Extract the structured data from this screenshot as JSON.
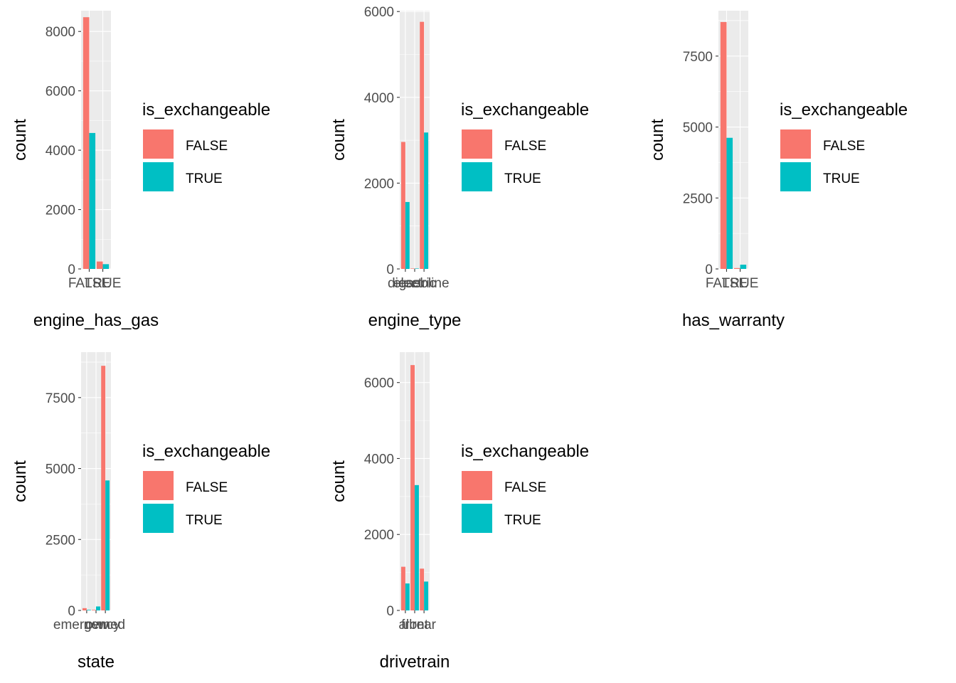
{
  "colors": {
    "FALSE": "#F8766D",
    "TRUE": "#00BFC4"
  },
  "legend": {
    "title": "is_exchangeable",
    "items": [
      {
        "label": "FALSE",
        "color": "#F8766D"
      },
      {
        "label": "TRUE",
        "color": "#00BFC4"
      }
    ]
  },
  "chart_data": [
    {
      "type": "bar",
      "position": "dodge",
      "xlabel": "engine_has_gas",
      "ylabel": "count",
      "categories": [
        "FALSE",
        "TRUE"
      ],
      "series": [
        {
          "name": "FALSE",
          "values": [
            8480,
            250
          ]
        },
        {
          "name": "TRUE",
          "values": [
            4580,
            160
          ]
        }
      ],
      "ylim": [
        0,
        8700
      ],
      "yticks": [
        0,
        2000,
        4000,
        6000,
        8000
      ]
    },
    {
      "type": "bar",
      "position": "dodge",
      "xlabel": "engine_type",
      "ylabel": "count",
      "categories": [
        "diesel",
        "electric",
        "gasoline"
      ],
      "series": [
        {
          "name": "FALSE",
          "values": [
            2960,
            10,
            5760
          ]
        },
        {
          "name": "TRUE",
          "values": [
            1560,
            10,
            3180
          ]
        }
      ],
      "ylim": [
        0,
        6020
      ],
      "yticks": [
        0,
        2000,
        4000,
        6000
      ]
    },
    {
      "type": "bar",
      "position": "dodge",
      "xlabel": "has_warranty",
      "ylabel": "count",
      "categories": [
        "FALSE",
        "TRUE"
      ],
      "series": [
        {
          "name": "FALSE",
          "values": [
            8700,
            30
          ]
        },
        {
          "name": "TRUE",
          "values": [
            4620,
            150
          ]
        }
      ],
      "ylim": [
        0,
        9100
      ],
      "yticks": [
        0,
        2500,
        5000,
        7500
      ]
    },
    {
      "type": "bar",
      "position": "dodge",
      "xlabel": "state",
      "ylabel": "count",
      "categories": [
        "emergency",
        "new",
        "owned"
      ],
      "series": [
        {
          "name": "FALSE",
          "values": [
            80,
            20,
            8620
          ]
        },
        {
          "name": "TRUE",
          "values": [
            20,
            140,
            4580
          ]
        }
      ],
      "ylim": [
        0,
        9100
      ],
      "yticks": [
        0,
        2500,
        5000,
        7500
      ]
    },
    {
      "type": "bar",
      "position": "dodge",
      "xlabel": "drivetrain",
      "ylabel": "count",
      "categories": [
        "all",
        "front",
        "rear"
      ],
      "series": [
        {
          "name": "FALSE",
          "values": [
            1150,
            6460,
            1100
          ]
        },
        {
          "name": "TRUE",
          "values": [
            710,
            3300,
            760
          ]
        }
      ],
      "ylim": [
        0,
        6800
      ],
      "yticks": [
        0,
        2000,
        4000,
        6000
      ]
    }
  ]
}
